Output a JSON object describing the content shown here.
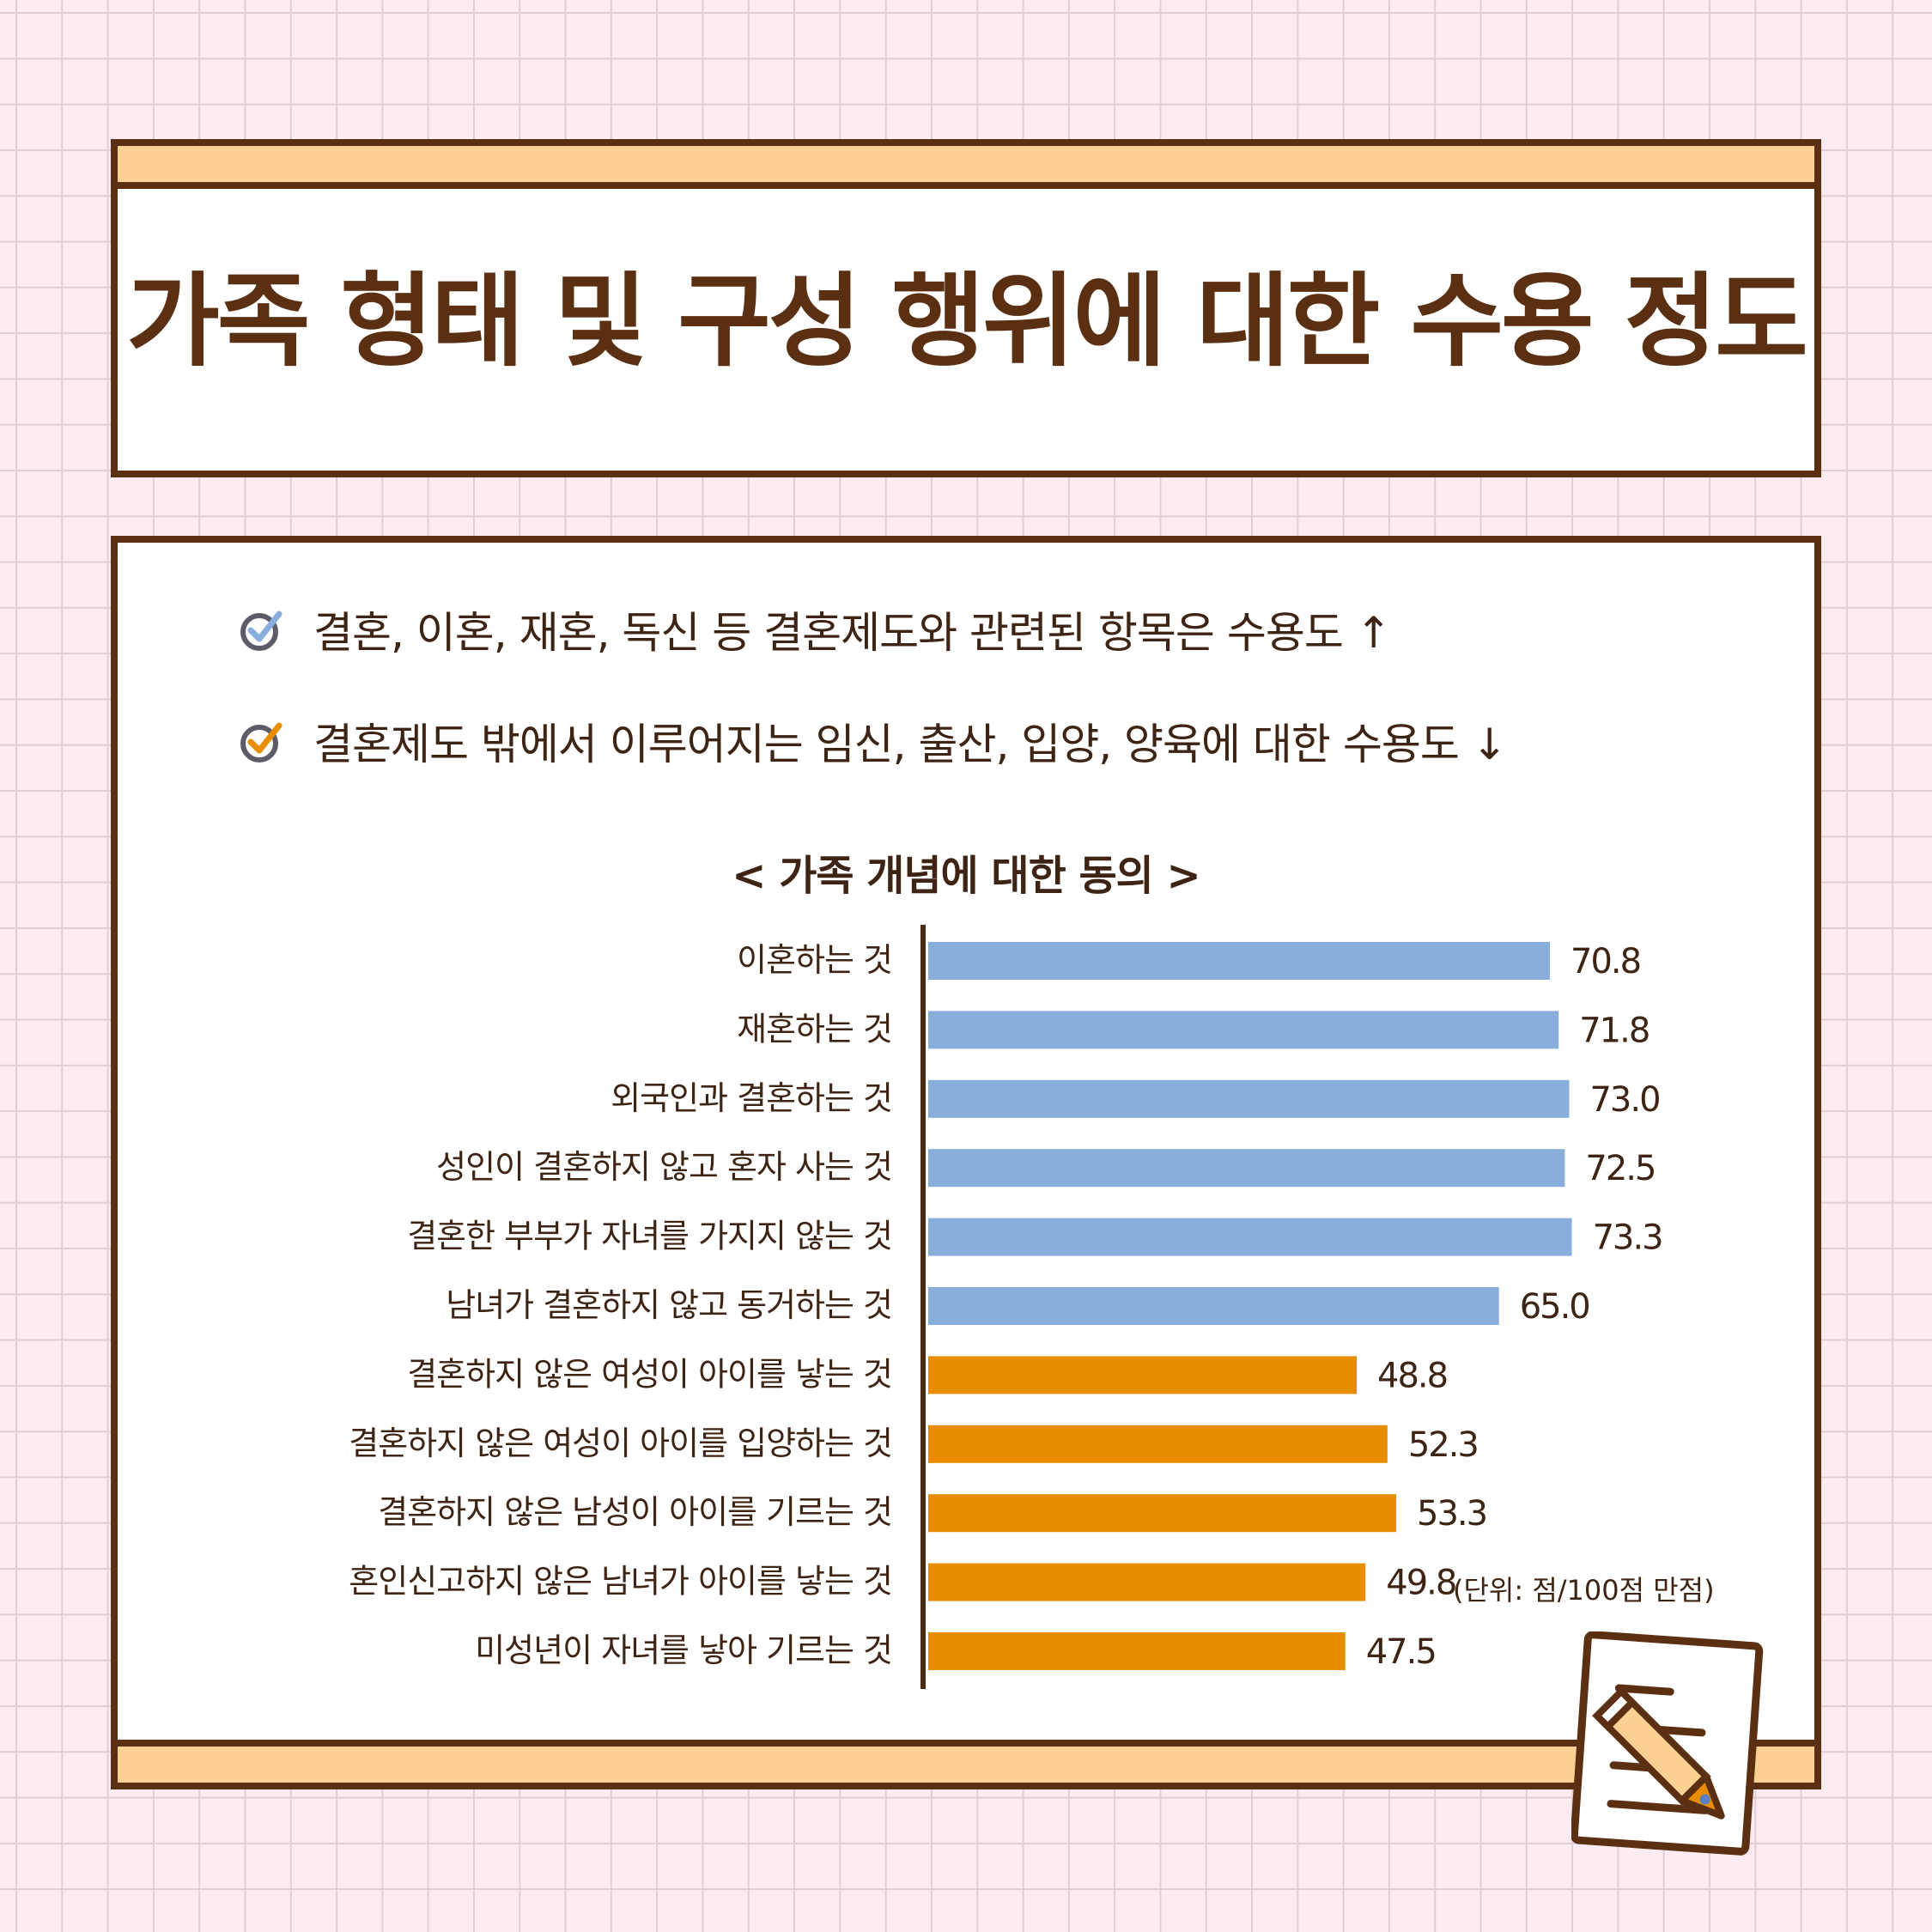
{
  "title": "가족 형태 및 구성 행위에 대한 수용 정도",
  "bullets": [
    {
      "icon": "check-circle-icon-blue",
      "text": "결혼, 이혼, 재혼, 독신 등 결혼제도와 관련된 항목은 수용도 ↑"
    },
    {
      "icon": "check-circle-icon-orange",
      "text": "결혼제도 밖에서 이루어지는 임신, 출산, 입양, 양육에 대한 수용도 ↓"
    }
  ],
  "unit_note": "(단위: 점/100점 만점)",
  "colors": {
    "blue": "#8aaedc",
    "orange": "#e88d00",
    "brown": "#5b3012"
  },
  "chart_data": {
    "type": "bar",
    "orientation": "horizontal",
    "title": "< 가족 개념에 대한 동의 >",
    "categories": [
      "이혼하는 것",
      "재혼하는 것",
      "외국인과 결혼하는 것",
      "성인이 결혼하지 않고 혼자 사는 것",
      "결혼한 부부가 자녀를 가지지 않는 것",
      "남녀가 결혼하지 않고 동거하는 것",
      "결혼하지 않은 여성이 아이를 낳는 것",
      "결혼하지 않은 여성이 아이를 입양하는 것",
      "결혼하지 않은 남성이 아이를 기르는 것",
      "혼인신고하지 않은 남녀가 아이를 낳는 것",
      "미성년이 자녀를 낳아 기르는 것"
    ],
    "values": [
      70.8,
      71.8,
      73.0,
      72.5,
      73.3,
      65.0,
      48.8,
      52.3,
      53.3,
      49.8,
      47.5
    ],
    "value_labels": [
      "70.8",
      "71.8",
      "73.0",
      "72.5",
      "73.3",
      "65.0",
      "48.8",
      "52.3",
      "53.3",
      "49.8",
      "47.5"
    ],
    "bar_colors": [
      "#8aaedc",
      "#8aaedc",
      "#8aaedc",
      "#8aaedc",
      "#8aaedc",
      "#8aaedc",
      "#e88d00",
      "#e88d00",
      "#e88d00",
      "#e88d00",
      "#e88d00"
    ],
    "xlim": [
      0,
      100
    ],
    "grid": false,
    "legend": "none"
  }
}
